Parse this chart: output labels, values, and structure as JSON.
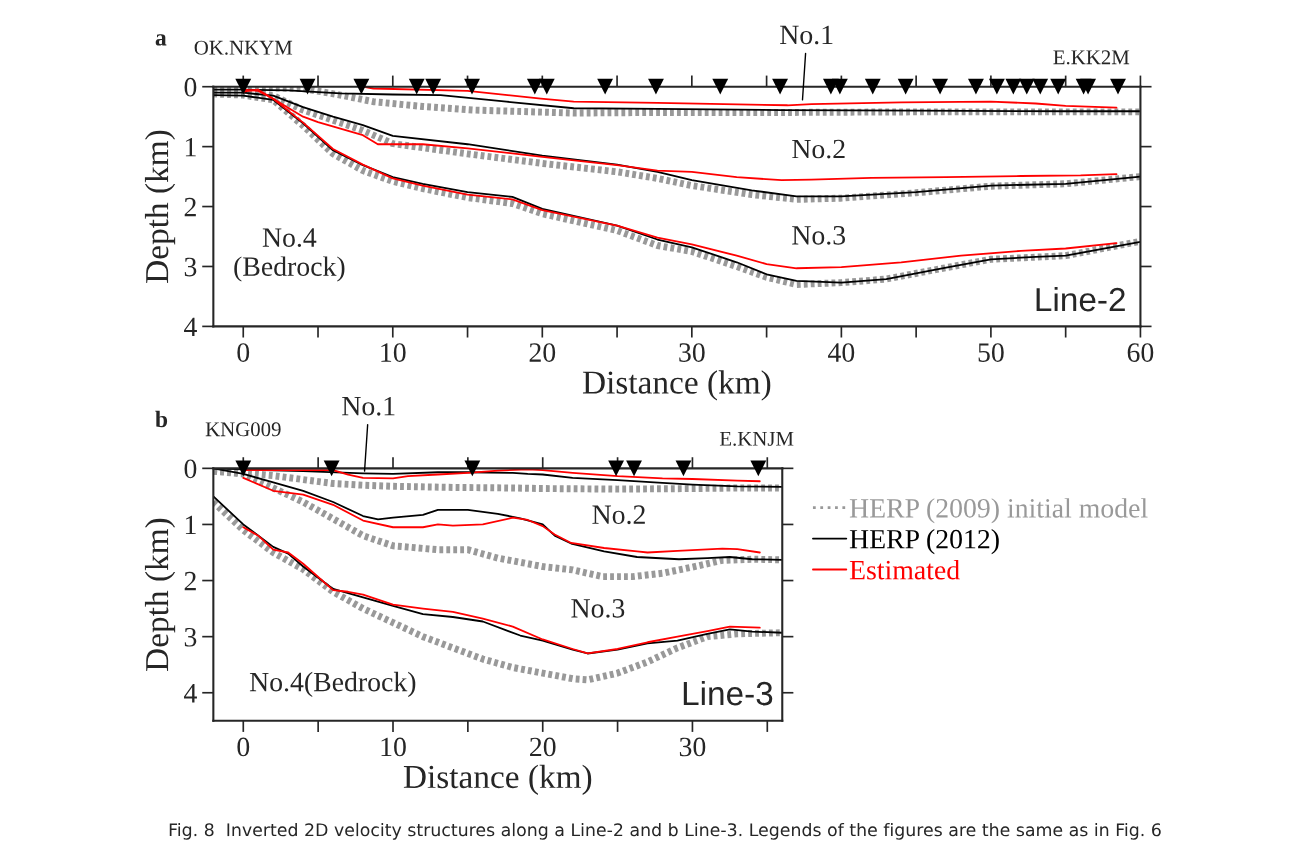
{
  "chart_data": [
    {
      "type": "line",
      "title": "a",
      "xlabel": "Distance (km)",
      "ylabel": "Depth (km)",
      "xlim": [
        -2,
        60
      ],
      "ylim": [
        4,
        0
      ],
      "xticks": [
        0,
        {
          "value": 5,
          "label": null
        },
        10,
        {
          "value": 15,
          "label": null
        },
        20,
        {
          "value": 25,
          "label": null
        },
        30,
        {
          "value": 35,
          "label": null
        },
        40,
        {
          "value": 45,
          "label": null
        },
        50,
        {
          "value": 55,
          "label": null
        },
        60
      ],
      "yticks": [
        0,
        1,
        2,
        3,
        4
      ],
      "legend": false,
      "series": [
        {
          "color": "#999999",
          "line_style": "dotted",
          "x": [
            -2,
            0,
            4,
            6.5,
            8.7,
            12,
            15.4,
            22.1,
            27.7,
            36,
            45,
            55,
            60
          ],
          "values": [
            0.0,
            0.01,
            0.03,
            0.14,
            0.25,
            0.33,
            0.39,
            0.44,
            0.43,
            0.43,
            0.42,
            0.42,
            0.42
          ]
        },
        {
          "color": "#999999",
          "line_style": "dotted",
          "x": [
            -2,
            0,
            2,
            4,
            6,
            8,
            10,
            15,
            20,
            25,
            27.7,
            30,
            34,
            37,
            40,
            45,
            50,
            55,
            60
          ],
          "values": [
            0.07,
            0.08,
            0.15,
            0.39,
            0.56,
            0.73,
            0.95,
            1.12,
            1.28,
            1.42,
            1.53,
            1.65,
            1.8,
            1.88,
            1.86,
            1.77,
            1.66,
            1.62,
            1.5
          ]
        },
        {
          "color": "#999999",
          "line_style": "dotted",
          "x": [
            -2,
            0,
            2,
            4,
            6,
            8,
            10,
            12,
            15,
            18,
            20,
            25,
            27.7,
            30,
            33,
            35,
            37,
            40,
            43,
            47,
            50,
            55,
            60
          ],
          "values": [
            0.12,
            0.14,
            0.22,
            0.65,
            1.12,
            1.4,
            1.58,
            1.7,
            1.85,
            1.95,
            2.12,
            2.4,
            2.65,
            2.75,
            3.0,
            3.18,
            3.3,
            3.27,
            3.21,
            3.02,
            2.88,
            2.82,
            2.58
          ]
        },
        {
          "color": "#000000",
          "line_style": "solid",
          "x": [
            -2,
            0,
            3,
            6.5,
            10,
            13.2,
            17.6,
            22.1,
            27.7,
            36,
            45,
            55,
            60
          ],
          "values": [
            0.05,
            0.05,
            0.06,
            0.11,
            0.13,
            0.14,
            0.25,
            0.36,
            0.37,
            0.39,
            0.4,
            0.41,
            0.41
          ]
        },
        {
          "color": "#000000",
          "line_style": "solid",
          "x": [
            -2,
            0,
            2,
            4,
            6,
            8,
            10,
            15,
            20,
            25,
            27.7,
            30,
            34,
            37,
            40,
            45,
            50,
            55,
            60
          ],
          "values": [
            0.1,
            0.1,
            0.15,
            0.34,
            0.5,
            0.64,
            0.82,
            0.96,
            1.15,
            1.3,
            1.42,
            1.56,
            1.73,
            1.83,
            1.83,
            1.76,
            1.65,
            1.62,
            1.5
          ]
        },
        {
          "color": "#000000",
          "line_style": "solid",
          "x": [
            -2,
            0,
            2,
            4,
            6,
            8,
            10,
            12,
            15,
            18,
            20,
            25,
            27.7,
            30,
            33,
            35,
            37,
            40,
            43,
            47,
            50,
            53,
            55,
            58,
            60
          ],
          "values": [
            0.14,
            0.15,
            0.22,
            0.61,
            1.06,
            1.31,
            1.51,
            1.62,
            1.76,
            1.84,
            2.04,
            2.32,
            2.55,
            2.68,
            2.93,
            3.13,
            3.24,
            3.27,
            3.21,
            3.02,
            2.88,
            2.84,
            2.82,
            2.68,
            2.59
          ]
        },
        {
          "color": "#ff0000",
          "line_style": "solid",
          "x": [
            8,
            8.7,
            15,
            19.9,
            22.1,
            27.7,
            36.4,
            38,
            44,
            50,
            53,
            55,
            58.4
          ],
          "values": [
            0.0,
            0.03,
            0.07,
            0.2,
            0.25,
            0.27,
            0.31,
            0.29,
            0.26,
            0.25,
            0.28,
            0.32,
            0.35
          ]
        },
        {
          "color": "#ff0000",
          "line_style": "solid",
          "x": [
            0,
            1,
            2,
            4,
            5,
            8,
            9,
            12,
            15,
            20,
            25,
            27.7,
            30,
            33,
            36,
            38,
            42,
            47,
            52,
            56,
            58.4
          ],
          "values": [
            0.05,
            0.07,
            0.2,
            0.5,
            0.59,
            0.81,
            0.96,
            0.96,
            1.03,
            1.17,
            1.31,
            1.4,
            1.42,
            1.51,
            1.56,
            1.55,
            1.52,
            1.51,
            1.49,
            1.48,
            1.46
          ]
        },
        {
          "color": "#ff0000",
          "line_style": "solid",
          "x": [
            0,
            1,
            2,
            4,
            6,
            8,
            10,
            12,
            15,
            18,
            20,
            25,
            27.7,
            30,
            33,
            35,
            37,
            40,
            44,
            48,
            52,
            55,
            58.4
          ],
          "values": [
            0.08,
            0.05,
            0.2,
            0.6,
            1.04,
            1.3,
            1.53,
            1.65,
            1.8,
            1.88,
            2.06,
            2.32,
            2.52,
            2.63,
            2.82,
            2.96,
            3.03,
            3.01,
            2.93,
            2.82,
            2.74,
            2.7,
            2.61
          ]
        },
        {
          "type": "scatter",
          "marker": "triangle",
          "color": "#000000",
          "x": [
            0,
            4.3,
            7.9,
            11.6,
            12.7,
            15.3,
            19.5,
            20.3,
            24.2,
            27.6,
            31.9,
            35.9,
            39.3,
            39.9,
            42.1,
            44.3,
            46.6,
            49.0,
            50.4,
            51.5,
            52.4,
            53.3,
            54.5,
            56.2,
            56.5,
            58.5
          ],
          "values": [
            0,
            0,
            0,
            0,
            0,
            0,
            0,
            0,
            0,
            0,
            0,
            0,
            0,
            0,
            0,
            0,
            0,
            0,
            0,
            0,
            0,
            0,
            0,
            0,
            0,
            0
          ]
        }
      ],
      "annotations": [
        {
          "text": "OK.NKYM",
          "x": 0
        },
        "E.KK2M",
        {
          "text": "No.1",
          "x": 37.4,
          "y": 0.22
        },
        "No.2",
        "No.3",
        "No.4\n(Bedrock)",
        "Line-2"
      ]
    },
    {
      "type": "line",
      "title": "b",
      "xlabel": "Distance (km)",
      "ylabel": "Depth (km)",
      "xlim": [
        -2,
        36
      ],
      "ylim": [
        4.5,
        0
      ],
      "xticks": [
        0,
        {
          "value": 5,
          "label": null
        },
        10,
        {
          "value": 15,
          "label": null
        },
        20,
        {
          "value": 25,
          "label": null
        },
        30,
        {
          "value": 35,
          "label": null
        }
      ],
      "yticks": [
        0,
        1,
        2,
        3,
        4
      ],
      "legend": "right",
      "series": [
        {
          "name": "HERP (2009) initial model",
          "color": "#999999",
          "line_style": "dotted",
          "x": [
            -2,
            0,
            2,
            4,
            6,
            8,
            10,
            14,
            18,
            20,
            25,
            30,
            33,
            36
          ],
          "values": [
            0.05,
            0.08,
            0.13,
            0.2,
            0.27,
            0.3,
            0.32,
            0.34,
            0.35,
            0.36,
            0.37,
            0.36,
            0.35,
            0.35
          ]
        },
        {
          "color": "#999999",
          "line_style": "dotted",
          "x": [
            -2,
            0,
            2,
            4,
            6,
            8,
            10,
            13,
            15,
            17,
            19,
            20,
            22,
            24,
            26,
            28,
            30,
            32,
            34,
            36
          ],
          "values": [
            0.05,
            0.1,
            0.35,
            0.6,
            0.9,
            1.2,
            1.38,
            1.45,
            1.45,
            1.6,
            1.7,
            1.75,
            1.81,
            1.93,
            1.93,
            1.87,
            1.76,
            1.64,
            1.62,
            1.63
          ]
        },
        {
          "color": "#999999",
          "line_style": "dotted",
          "x": [
            -2,
            0,
            2,
            4,
            6,
            8,
            10,
            12,
            14,
            16,
            18,
            20,
            22,
            23,
            25,
            27,
            29,
            31,
            33,
            36
          ],
          "values": [
            0.6,
            1.1,
            1.5,
            1.8,
            2.2,
            2.5,
            2.75,
            3.0,
            3.2,
            3.4,
            3.55,
            3.65,
            3.75,
            3.77,
            3.65,
            3.45,
            3.2,
            3.0,
            2.95,
            2.93
          ]
        },
        {
          "name": "HERP (2012)",
          "color": "#000000",
          "line_style": "solid",
          "x": [
            -2,
            0,
            4,
            8,
            10,
            13,
            15,
            18,
            19,
            20,
            22,
            25,
            28,
            30,
            33,
            36
          ],
          "values": [
            0.0,
            0.02,
            0.05,
            0.09,
            0.1,
            0.07,
            0.07,
            0.08,
            0.1,
            0.11,
            0.17,
            0.21,
            0.26,
            0.29,
            0.32,
            0.33
          ]
        },
        {
          "color": "#000000",
          "line_style": "solid",
          "x": [
            -2,
            0,
            2,
            4,
            6,
            8,
            9,
            10,
            12,
            13,
            15,
            17,
            18.5,
            20,
            20.8,
            21.9,
            24.1,
            26.3,
            29.1,
            31,
            32.5,
            34,
            36
          ],
          "values": [
            0.0,
            0.1,
            0.25,
            0.4,
            0.6,
            0.85,
            0.91,
            0.88,
            0.83,
            0.74,
            0.74,
            0.81,
            0.89,
            1.0,
            1.2,
            1.34,
            1.48,
            1.58,
            1.62,
            1.6,
            1.58,
            1.62,
            1.63
          ]
        },
        {
          "color": "#000000",
          "line_style": "solid",
          "x": [
            -2,
            0,
            2,
            3,
            4,
            6,
            8,
            10,
            12,
            14,
            16,
            18.5,
            20,
            22,
            23,
            25,
            27,
            29,
            31,
            32.5,
            34,
            36
          ],
          "values": [
            0.5,
            1.0,
            1.4,
            1.52,
            1.75,
            2.15,
            2.3,
            2.45,
            2.6,
            2.65,
            2.73,
            2.98,
            3.07,
            3.23,
            3.3,
            3.23,
            3.12,
            3.07,
            2.95,
            2.87,
            2.91,
            2.93
          ]
        },
        {
          "name": "Estimated",
          "color": "#ff0000",
          "line_style": "solid",
          "x": [
            0,
            6,
            7,
            8,
            10,
            11,
            13,
            15,
            17,
            19,
            20,
            22,
            25,
            28,
            30,
            33,
            34.5
          ],
          "values": [
            0.03,
            0.03,
            0.11,
            0.17,
            0.18,
            0.14,
            0.11,
            0.08,
            0.04,
            0.02,
            0.03,
            0.08,
            0.14,
            0.18,
            0.19,
            0.22,
            0.23
          ]
        },
        {
          "color": "#ff0000",
          "line_style": "solid",
          "x": [
            0,
            2,
            4,
            6,
            8,
            10,
            12,
            13,
            14,
            16,
            18,
            19,
            20,
            20.8,
            21.9,
            24.1,
            26.3,
            27,
            29,
            32,
            33,
            34.5
          ],
          "values": [
            0.17,
            0.4,
            0.47,
            0.65,
            0.93,
            1.05,
            1.05,
            1.0,
            1.02,
            1.0,
            0.88,
            0.92,
            1.03,
            1.18,
            1.33,
            1.42,
            1.48,
            1.5,
            1.47,
            1.43,
            1.44,
            1.5
          ]
        },
        {
          "color": "#ff0000",
          "line_style": "solid",
          "x": [
            0,
            1,
            2,
            3,
            4,
            6,
            7,
            8,
            10,
            12,
            14,
            16,
            18,
            20,
            22,
            23,
            25,
            27,
            29,
            31,
            32.5,
            34.5
          ],
          "values": [
            1.05,
            1.2,
            1.45,
            1.5,
            1.7,
            2.17,
            2.2,
            2.25,
            2.43,
            2.5,
            2.56,
            2.68,
            2.82,
            3.05,
            3.22,
            3.3,
            3.22,
            3.1,
            3.0,
            2.9,
            2.82,
            2.84
          ]
        },
        {
          "type": "scatter",
          "marker": "triangle",
          "color": "#000000",
          "x": [
            0,
            5.9,
            15.3,
            24.9,
            26.1,
            29.4,
            34.4
          ],
          "values": [
            0,
            0,
            0,
            0,
            0,
            0,
            0
          ]
        }
      ],
      "annotations": [
        {
          "text": "KNG009",
          "x": 0
        },
        "E.KNJM",
        {
          "text": "No.1",
          "x": 8.1,
          "y": 0.05
        },
        "No.2",
        "No.3",
        "No.4(Bedrock)",
        "Line-3",
        "Fig. 8  Inverted 2D velocity structures along a Line-2 and b Line-3. Legends of the figures are the same as in Fig. 6"
      ]
    }
  ]
}
